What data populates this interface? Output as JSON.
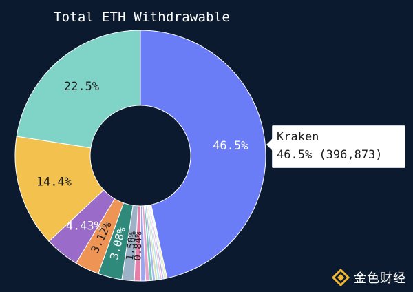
{
  "chart_data": {
    "type": "pie",
    "donut": true,
    "title": "Total ETH Withdrawable",
    "slices": [
      {
        "label": "Kraken",
        "value": 46.5,
        "label_text": "46.5%",
        "color": "#6b7cf7"
      },
      {
        "value": 0.2,
        "color": "#f3e7a8"
      },
      {
        "value": 0.2,
        "color": "#c8f0d0"
      },
      {
        "value": 0.25,
        "color": "#c6b6f0"
      },
      {
        "value": 0.25,
        "color": "#f2c4dc"
      },
      {
        "value": 0.3,
        "color": "#b8e6f2"
      },
      {
        "value": 0.3,
        "color": "#dde3b0"
      },
      {
        "value": 0.35,
        "color": "#a9b8ee"
      },
      {
        "value": 0.4,
        "color": "#74c9bd"
      },
      {
        "value": 0.5,
        "color": "#e9a2c9"
      },
      {
        "value": 0.6,
        "color": "#9aa7f0"
      },
      {
        "value": 0.84,
        "label_text": "0.84%",
        "color": "#e47fa8"
      },
      {
        "value": 1.58,
        "label_text": "1.58%",
        "color": "#9db2c6"
      },
      {
        "value": 3.08,
        "label_text": "3.08%",
        "color": "#2f8a7b"
      },
      {
        "value": 3.12,
        "label_text": "3.12%",
        "color": "#ee9455"
      },
      {
        "value": 4.43,
        "label_text": "4.43%",
        "color": "#9a6bc9"
      },
      {
        "value": 14.4,
        "label_text": "14.4%",
        "color": "#f2c14e"
      },
      {
        "value": 22.5,
        "label_text": "22.5%",
        "color": "#7fd3c7"
      }
    ],
    "tooltip": {
      "name": "Kraken",
      "value": "46.5% (396,873)"
    }
  },
  "watermark": {
    "text": "金色财经",
    "logo_icon": "golden-diamond-logo-icon"
  }
}
